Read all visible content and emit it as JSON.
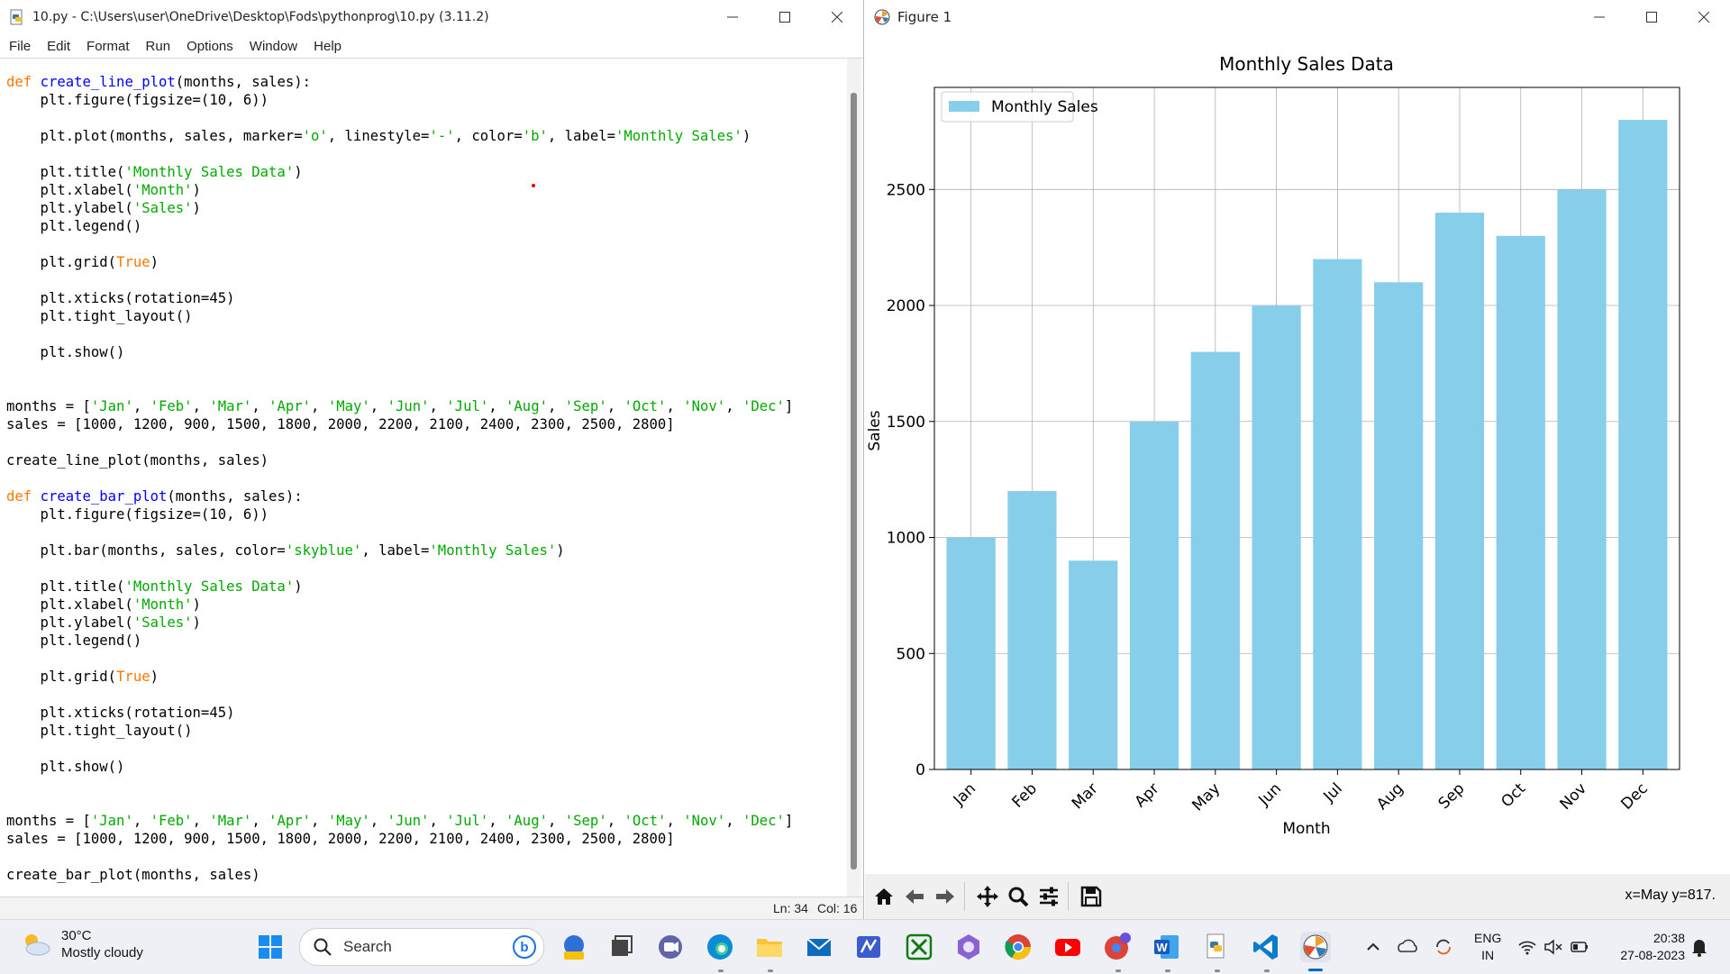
{
  "idle": {
    "title": "10.py - C:\\Users\\user\\OneDrive\\Desktop\\Fods\\pythonprog\\10.py (3.11.2)",
    "menu": [
      "File",
      "Edit",
      "Format",
      "Run",
      "Options",
      "Window",
      "Help"
    ],
    "code": [
      "def create_line_plot(months, sales):",
      "    plt.figure(figsize=(10, 6))",
      "",
      "    plt.plot(months, sales, marker='o', linestyle='-', color='b', label='Monthly Sales')",
      "",
      "    plt.title('Monthly Sales Data')",
      "    plt.xlabel('Month')",
      "    plt.ylabel('Sales')",
      "    plt.legend()",
      "",
      "    plt.grid(True)",
      "",
      "    plt.xticks(rotation=45)",
      "    plt.tight_layout()",
      "",
      "    plt.show()",
      "",
      "",
      "months = ['Jan', 'Feb', 'Mar', 'Apr', 'May', 'Jun', 'Jul', 'Aug', 'Sep', 'Oct', 'Nov', 'Dec']",
      "sales = [1000, 1200, 900, 1500, 1800, 2000, 2200, 2100, 2400, 2300, 2500, 2800]",
      "",
      "create_line_plot(months, sales)",
      "",
      "def create_bar_plot(months, sales):",
      "    plt.figure(figsize=(10, 6))",
      "",
      "    plt.bar(months, sales, color='skyblue', label='Monthly Sales')",
      "",
      "    plt.title('Monthly Sales Data')",
      "    plt.xlabel('Month')",
      "    plt.ylabel('Sales')",
      "    plt.legend()",
      "",
      "    plt.grid(True)",
      "",
      "    plt.xticks(rotation=45)",
      "    plt.tight_layout()",
      "",
      "    plt.show()",
      "",
      "",
      "months = ['Jan', 'Feb', 'Mar', 'Apr', 'May', 'Jun', 'Jul', 'Aug', 'Sep', 'Oct', 'Nov', 'Dec']",
      "sales = [1000, 1200, 900, 1500, 1800, 2000, 2200, 2100, 2400, 2300, 2500, 2800]",
      "",
      "create_bar_plot(months, sales)"
    ],
    "status_ln": "Ln: 34",
    "status_col": "Col: 16"
  },
  "figure": {
    "title": "Figure 1",
    "coord_readout": "x=May y=817.",
    "toolbar_icons": [
      "home-icon",
      "back-arrow-icon",
      "forward-arrow-icon",
      "pan-icon",
      "zoom-icon",
      "configure-subplots-icon",
      "save-icon"
    ]
  },
  "chart_data": {
    "type": "bar",
    "title": "Monthly Sales Data",
    "xlabel": "Month",
    "ylabel": "Sales",
    "categories": [
      "Jan",
      "Feb",
      "Mar",
      "Apr",
      "May",
      "Jun",
      "Jul",
      "Aug",
      "Sep",
      "Oct",
      "Nov",
      "Dec"
    ],
    "series": [
      {
        "name": "Monthly Sales",
        "values": [
          1000,
          1200,
          900,
          1500,
          1800,
          2000,
          2200,
          2100,
          2400,
          2300,
          2500,
          2800
        ],
        "color": "#87ceeb"
      }
    ],
    "yticks": [
      0,
      500,
      1000,
      1500,
      2000,
      2500
    ],
    "ylim": [
      0,
      2940
    ],
    "xtick_rotation": 45,
    "grid": true,
    "legend": "top-left"
  },
  "taskbar": {
    "weather_temp": "30°C",
    "weather_desc": "Mostly cloudy",
    "search_label": "Search",
    "lang_top": "ENG",
    "lang_bottom": "IN",
    "time": "20:38",
    "date": "27-08-2023"
  },
  "colors": {
    "keyword": "#ff7700",
    "function_name": "#0000ff",
    "string": "#00aa00",
    "bar": "#87ceeb",
    "taskbar_accent": "#0067c0"
  }
}
